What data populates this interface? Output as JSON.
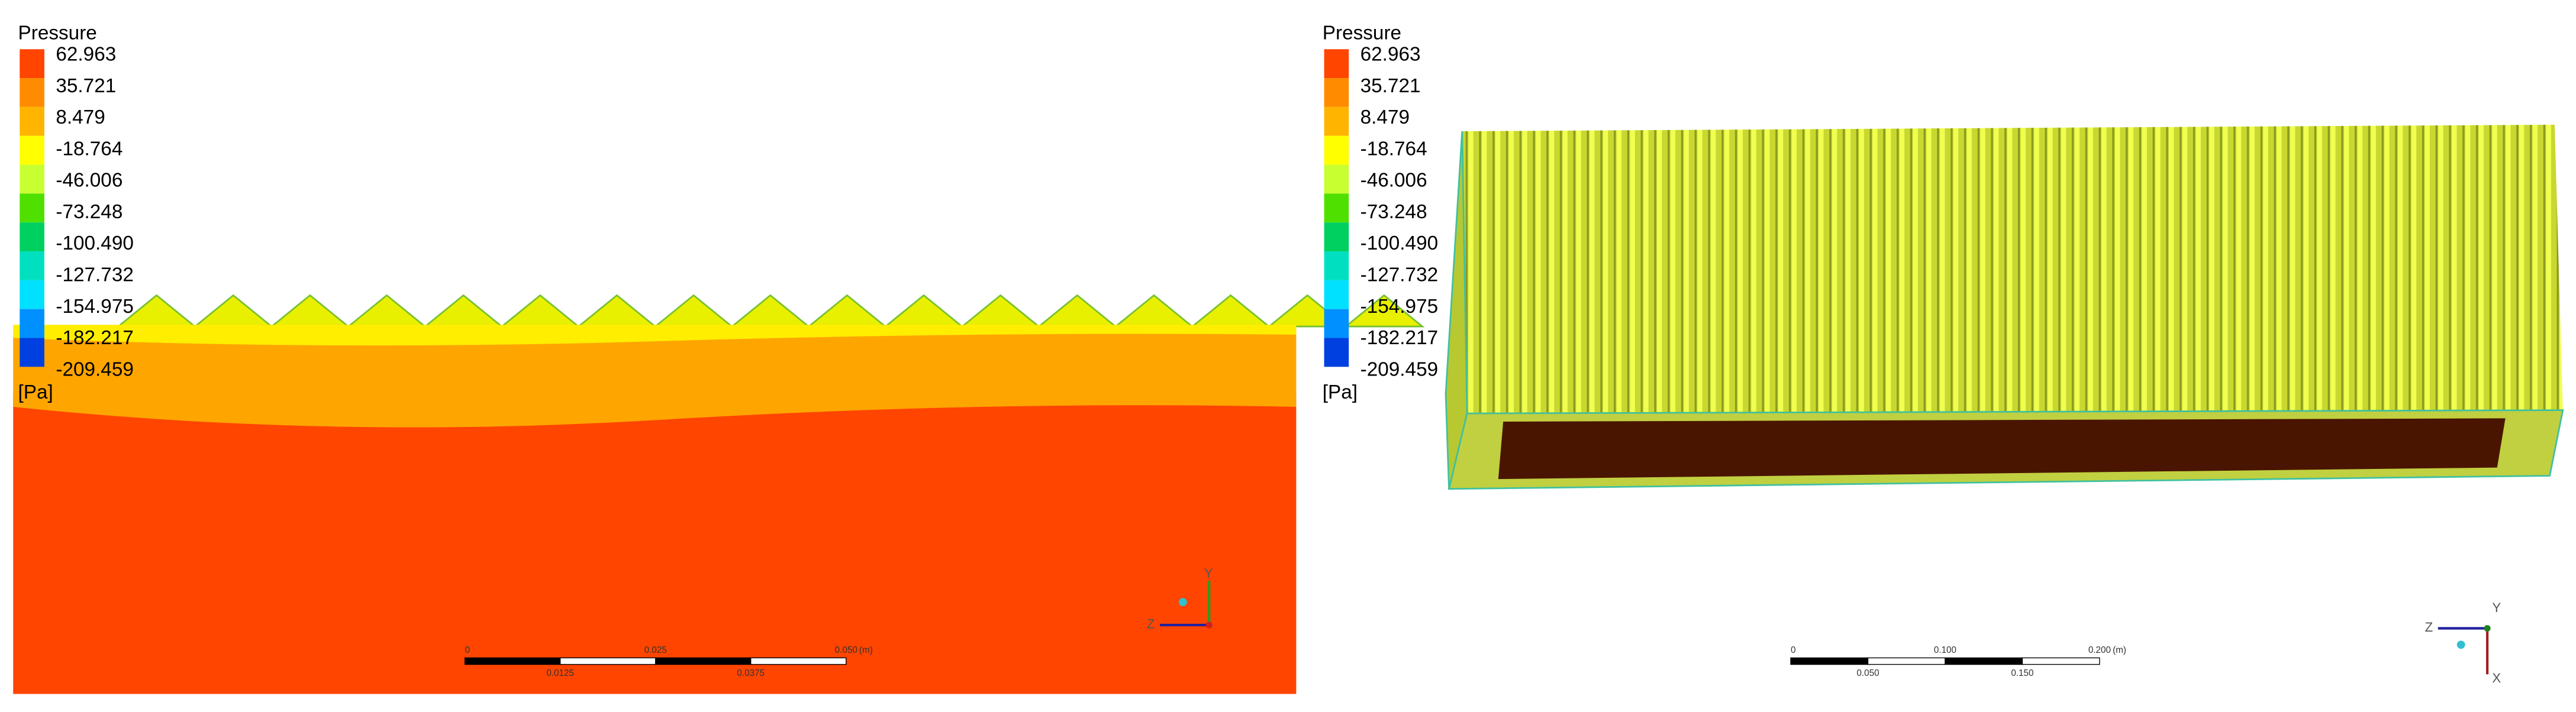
{
  "panels": [
    {
      "legend": {
        "title": "Pressure",
        "labels": [
          "62.963",
          "35.721",
          "8.479",
          "-18.764",
          "-46.006",
          "-73.248",
          "-100.490",
          "-127.732",
          "-154.975",
          "-182.217",
          "-209.459"
        ],
        "unit": "[Pa]"
      },
      "scale_bar": {
        "top_labels": [
          "0",
          "0.025",
          "0.050"
        ],
        "unit": "(m)",
        "bottom_labels": [
          "0.0125",
          "0.0375"
        ]
      },
      "axes": {
        "y": "Y",
        "z": "Z"
      }
    },
    {
      "legend": {
        "title": "Pressure",
        "labels": [
          "62.963",
          "35.721",
          "8.479",
          "-18.764",
          "-46.006",
          "-73.248",
          "-100.490",
          "-127.732",
          "-154.975",
          "-182.217",
          "-209.459"
        ],
        "unit": "[Pa]"
      },
      "scale_bar": {
        "top_labels": [
          "0",
          "0.100",
          "0.200"
        ],
        "unit": "(m)",
        "bottom_labels": [
          "0.050",
          "0.150"
        ]
      },
      "axes": {
        "y": "Y",
        "z": "Z",
        "x": "X"
      }
    }
  ]
}
